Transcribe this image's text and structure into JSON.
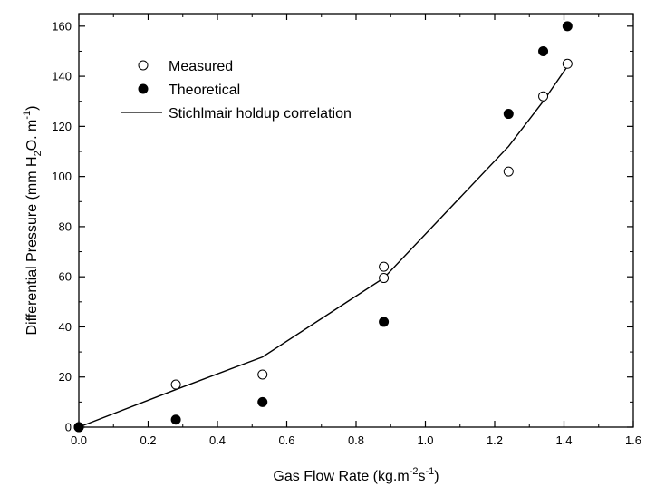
{
  "chart_data": {
    "type": "scatter",
    "xlabel": {
      "prefix": "Gas Flow Rate (kg.m",
      "sup1": "-2",
      "mid": "s",
      "sup2": "-1",
      "suffix": ")"
    },
    "ylabel": {
      "prefix": "Differential Pressure (mm H",
      "sub": "2",
      "mid": "O. m",
      "sup": "-1",
      "suffix": ")"
    },
    "xlim": [
      0,
      1.6
    ],
    "ylim": [
      0,
      165
    ],
    "x_ticks": [
      "0.0",
      "0.2",
      "0.4",
      "0.6",
      "0.8",
      "1.0",
      "1.2",
      "1.4",
      "1.6"
    ],
    "y_ticks": [
      "0",
      "20",
      "40",
      "60",
      "80",
      "100",
      "120",
      "140",
      "160"
    ],
    "grid": false,
    "legend_position": "top-left",
    "series": [
      {
        "name": "Measured",
        "style": "open-circle",
        "points": [
          {
            "x": 0.0,
            "y": 0
          },
          {
            "x": 0.28,
            "y": 17
          },
          {
            "x": 0.53,
            "y": 21
          },
          {
            "x": 0.88,
            "y": 64
          },
          {
            "x": 0.88,
            "y": 59.5
          },
          {
            "x": 1.24,
            "y": 102
          },
          {
            "x": 1.34,
            "y": 132
          },
          {
            "x": 1.41,
            "y": 145
          }
        ]
      },
      {
        "name": "Theoretical",
        "style": "filled-circle",
        "points": [
          {
            "x": 0.0,
            "y": 0
          },
          {
            "x": 0.28,
            "y": 3
          },
          {
            "x": 0.53,
            "y": 10
          },
          {
            "x": 0.88,
            "y": 42
          },
          {
            "x": 1.24,
            "y": 125
          },
          {
            "x": 1.34,
            "y": 150
          },
          {
            "x": 1.41,
            "y": 160
          }
        ]
      },
      {
        "name": "Stichlmair holdup correlation",
        "style": "line",
        "points": [
          {
            "x": 0.0,
            "y": 0
          },
          {
            "x": 0.28,
            "y": 15
          },
          {
            "x": 0.53,
            "y": 28
          },
          {
            "x": 0.88,
            "y": 59.5
          },
          {
            "x": 1.24,
            "y": 112
          },
          {
            "x": 1.34,
            "y": 130
          },
          {
            "x": 1.41,
            "y": 144
          }
        ]
      }
    ]
  }
}
